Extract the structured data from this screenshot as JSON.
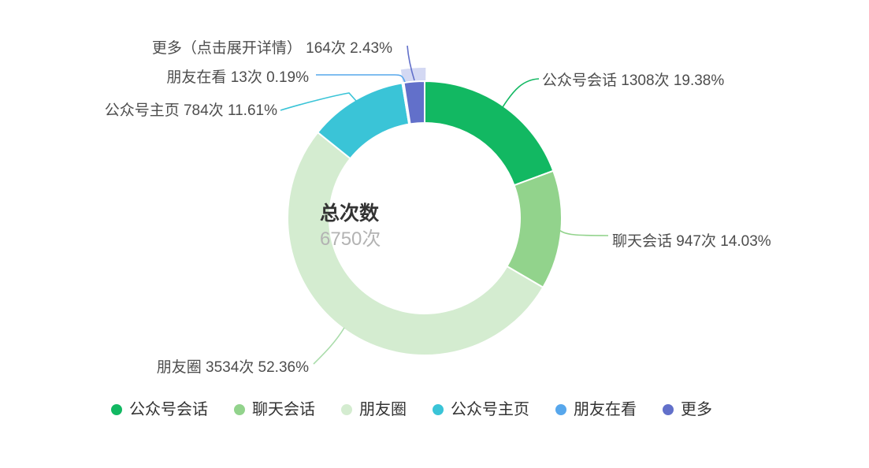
{
  "chart_data": {
    "type": "pie",
    "subtype": "donut",
    "legend_position": "bottom",
    "center": {
      "title": "总次数",
      "value_text": "6750次",
      "total": 6750,
      "unit": "次"
    },
    "series": [
      {
        "name": "公众号会话",
        "value": 1308,
        "percent": 19.38,
        "label": "公众号会话 1308次 19.38%",
        "color": "#12b862",
        "line_color": "#12b862"
      },
      {
        "name": "聊天会话",
        "value": 947,
        "percent": 14.03,
        "label": "聊天会话 947次 14.03%",
        "color": "#92d38c",
        "line_color": "#92d38c"
      },
      {
        "name": "朋友圈",
        "value": 3534,
        "percent": 52.36,
        "label": "朋友圈 3534次 52.36%",
        "color": "#d4ecd0",
        "line_color": "#a9dcaa"
      },
      {
        "name": "公众号主页",
        "value": 784,
        "percent": 11.61,
        "label": "公众号主页 784次 11.61%",
        "color": "#3ac4d7",
        "line_color": "#3ac4d7"
      },
      {
        "name": "朋友在看",
        "value": 13,
        "percent": 0.19,
        "label": "朋友在看 13次 0.19%",
        "color": "#57a7ec",
        "line_color": "#57a7ec"
      },
      {
        "name": "更多",
        "value": 164,
        "percent": 2.43,
        "label": "更多（点击展开详情） 164次 2.43%",
        "color": "#6270ca",
        "line_color": "#6270ca",
        "expandable": true,
        "highlighted": true
      }
    ],
    "legend": [
      "公众号会话",
      "聊天会话",
      "朋友圈",
      "公众号主页",
      "朋友在看",
      "更多"
    ],
    "colors": {
      "slice_border": "#ffffff",
      "highlight_halo": "rgba(151,162,226,0.42)",
      "label_text": "#4d4d4d",
      "center_title": "#333333",
      "center_value": "#b3b3b3",
      "legend_text": "#333333"
    }
  }
}
